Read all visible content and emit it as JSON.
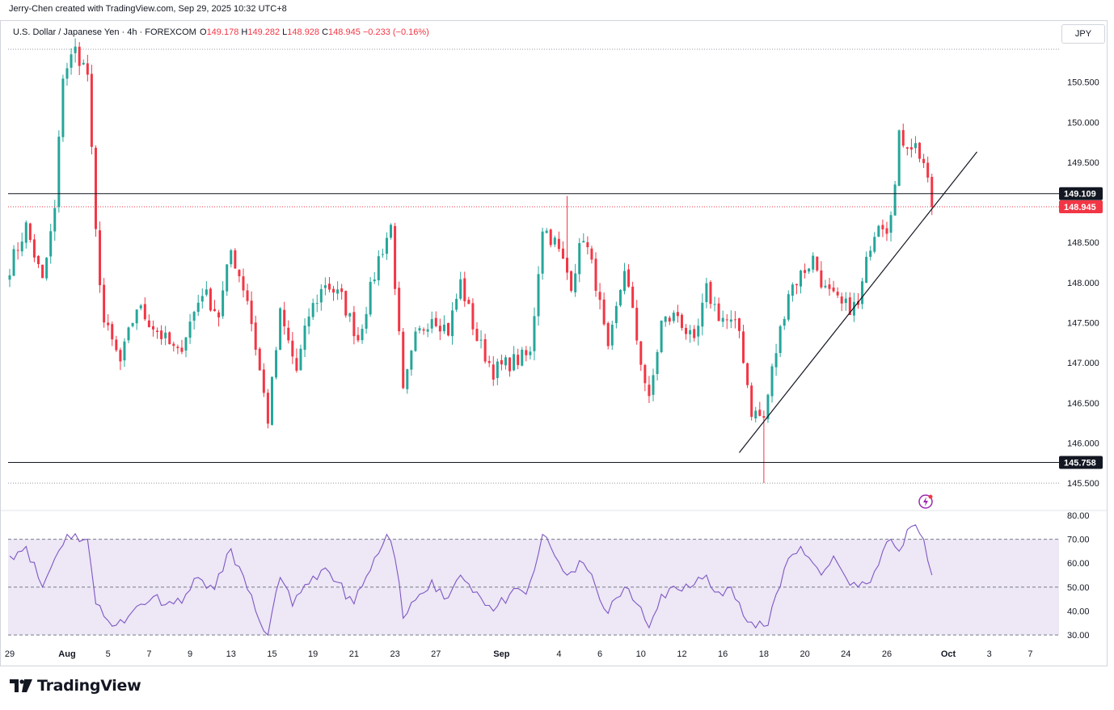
{
  "header": {
    "credit": "Jerry-Chen created with TradingView.com, Sep 29, 2025 10:32 UTC+8",
    "symbol": "U.S. Dollar / Japanese Yen · 4h · FOREXCOM",
    "ohlc": {
      "o_label": "O",
      "o": "149.178",
      "h_label": "H",
      "h": "149.282",
      "l_label": "L",
      "l": "148.928",
      "c_label": "C",
      "c": "148.945",
      "change": "−0.233 (−0.16%)"
    },
    "currency": "JPY"
  },
  "footer": {
    "brand": "TradingView"
  },
  "colors": {
    "up": "#26a69a",
    "down": "#f23645",
    "rsi": "#7e57c2",
    "rsi_band": "#ede7f6",
    "line": "#131722",
    "price_tag": "#f23645"
  },
  "chart_data": [
    {
      "type": "candlestick",
      "symbol": "USDJPY",
      "timeframe": "4h",
      "ylim": [
        145.4,
        151.0
      ],
      "y_ticks": [
        "150.500",
        "150.000",
        "149.500",
        "148.500",
        "148.000",
        "147.500",
        "147.000",
        "146.500",
        "146.000",
        "145.500"
      ],
      "x_ticks": [
        "29",
        "Aug",
        "5",
        "7",
        "9",
        "13",
        "15",
        "19",
        "21",
        "23",
        "27",
        "Sep",
        "4",
        "6",
        "10",
        "12",
        "16",
        "18",
        "20",
        "24",
        "26",
        "Oct",
        "3",
        "7"
      ],
      "x_tick_bars": [
        0,
        14,
        24,
        34,
        44,
        54,
        64,
        74,
        84,
        94,
        104,
        120,
        134,
        144,
        154,
        164,
        174,
        184,
        194,
        204,
        214,
        229,
        239,
        249
      ],
      "horizontal_levels": [
        {
          "label": "149.109",
          "value": 149.109,
          "color": "#131722",
          "style": "solid"
        },
        {
          "label": "145.758",
          "value": 145.758,
          "color": "#131722",
          "style": "solid"
        },
        {
          "label": "148.945",
          "value": 148.945,
          "color": "#f23645",
          "style": "dotted"
        }
      ],
      "trendline": {
        "from": {
          "bar": 178,
          "price": 145.88
        },
        "to": {
          "bar": 236,
          "price": 149.63
        }
      },
      "anchors": [
        {
          "bar": 0,
          "price": 148.2
        },
        {
          "bar": 4,
          "price": 148.7
        },
        {
          "bar": 8,
          "price": 148.0
        },
        {
          "bar": 11,
          "price": 148.9
        },
        {
          "bar": 13,
          "price": 150.6
        },
        {
          "bar": 16,
          "price": 150.9
        },
        {
          "bar": 19,
          "price": 150.6
        },
        {
          "bar": 21,
          "price": 148.6
        },
        {
          "bar": 23,
          "price": 147.5
        },
        {
          "bar": 27,
          "price": 147.0
        },
        {
          "bar": 31,
          "price": 147.7
        },
        {
          "bar": 36,
          "price": 147.4
        },
        {
          "bar": 41,
          "price": 147.1
        },
        {
          "bar": 47,
          "price": 147.9
        },
        {
          "bar": 51,
          "price": 147.6
        },
        {
          "bar": 54,
          "price": 148.4
        },
        {
          "bar": 58,
          "price": 147.8
        },
        {
          "bar": 63,
          "price": 146.3
        },
        {
          "bar": 66,
          "price": 147.6
        },
        {
          "bar": 70,
          "price": 146.9
        },
        {
          "bar": 73,
          "price": 147.6
        },
        {
          "bar": 77,
          "price": 148.0
        },
        {
          "bar": 81,
          "price": 147.8
        },
        {
          "bar": 85,
          "price": 147.3
        },
        {
          "bar": 90,
          "price": 148.3
        },
        {
          "bar": 93,
          "price": 148.7
        },
        {
          "bar": 96,
          "price": 146.6
        },
        {
          "bar": 99,
          "price": 147.3
        },
        {
          "bar": 103,
          "price": 147.6
        },
        {
          "bar": 107,
          "price": 147.4
        },
        {
          "bar": 110,
          "price": 148.0
        },
        {
          "bar": 114,
          "price": 147.3
        },
        {
          "bar": 118,
          "price": 146.9
        },
        {
          "bar": 122,
          "price": 147.0
        },
        {
          "bar": 127,
          "price": 147.1
        },
        {
          "bar": 130,
          "price": 148.7
        },
        {
          "bar": 133,
          "price": 148.5
        },
        {
          "bar": 137,
          "price": 148.0
        },
        {
          "bar": 140,
          "price": 148.6
        },
        {
          "bar": 143,
          "price": 148.0
        },
        {
          "bar": 146,
          "price": 147.1
        },
        {
          "bar": 150,
          "price": 148.2
        },
        {
          "bar": 153,
          "price": 147.3
        },
        {
          "bar": 156,
          "price": 146.5
        },
        {
          "bar": 159,
          "price": 147.5
        },
        {
          "bar": 163,
          "price": 147.6
        },
        {
          "bar": 167,
          "price": 147.2
        },
        {
          "bar": 170,
          "price": 147.9
        },
        {
          "bar": 173,
          "price": 147.6
        },
        {
          "bar": 178,
          "price": 147.4
        },
        {
          "bar": 181,
          "price": 146.4
        },
        {
          "bar": 184,
          "price": 146.3
        },
        {
          "bar": 186,
          "price": 146.9
        },
        {
          "bar": 190,
          "price": 147.9
        },
        {
          "bar": 193,
          "price": 148.1
        },
        {
          "bar": 196,
          "price": 148.3
        },
        {
          "bar": 199,
          "price": 147.9
        },
        {
          "bar": 203,
          "price": 147.7
        },
        {
          "bar": 207,
          "price": 147.7
        },
        {
          "bar": 210,
          "price": 148.5
        },
        {
          "bar": 212,
          "price": 148.8
        },
        {
          "bar": 214,
          "price": 148.7
        },
        {
          "bar": 216,
          "price": 149.2
        },
        {
          "bar": 217,
          "price": 149.8
        },
        {
          "bar": 219,
          "price": 149.75
        },
        {
          "bar": 221,
          "price": 149.7
        },
        {
          "bar": 223,
          "price": 149.5
        },
        {
          "bar": 224,
          "price": 149.2
        },
        {
          "bar": 225,
          "price": 148.945
        }
      ]
    },
    {
      "type": "line",
      "name": "RSI",
      "ylim": [
        27,
        82
      ],
      "y_ticks": [
        "80.00",
        "70.00",
        "60.00",
        "50.00",
        "40.00",
        "30.00"
      ],
      "band": [
        30,
        70
      ],
      "midline": 50,
      "anchors": [
        {
          "bar": 0,
          "value": 63
        },
        {
          "bar": 4,
          "value": 67
        },
        {
          "bar": 8,
          "value": 50
        },
        {
          "bar": 11,
          "value": 62
        },
        {
          "bar": 14,
          "value": 72
        },
        {
          "bar": 19,
          "value": 70
        },
        {
          "bar": 21,
          "value": 43
        },
        {
          "bar": 24,
          "value": 36
        },
        {
          "bar": 28,
          "value": 35
        },
        {
          "bar": 31,
          "value": 42
        },
        {
          "bar": 35,
          "value": 46
        },
        {
          "bar": 40,
          "value": 43
        },
        {
          "bar": 43,
          "value": 47
        },
        {
          "bar": 46,
          "value": 54
        },
        {
          "bar": 50,
          "value": 49
        },
        {
          "bar": 54,
          "value": 66
        },
        {
          "bar": 58,
          "value": 49
        },
        {
          "bar": 60,
          "value": 40
        },
        {
          "bar": 63,
          "value": 30
        },
        {
          "bar": 66,
          "value": 54
        },
        {
          "bar": 69,
          "value": 42
        },
        {
          "bar": 72,
          "value": 51
        },
        {
          "bar": 76,
          "value": 57
        },
        {
          "bar": 80,
          "value": 52
        },
        {
          "bar": 84,
          "value": 43
        },
        {
          "bar": 90,
          "value": 64
        },
        {
          "bar": 92,
          "value": 72
        },
        {
          "bar": 94,
          "value": 62
        },
        {
          "bar": 96,
          "value": 37
        },
        {
          "bar": 100,
          "value": 47
        },
        {
          "bar": 103,
          "value": 53
        },
        {
          "bar": 106,
          "value": 45
        },
        {
          "bar": 110,
          "value": 55
        },
        {
          "bar": 114,
          "value": 48
        },
        {
          "bar": 118,
          "value": 40
        },
        {
          "bar": 122,
          "value": 47
        },
        {
          "bar": 126,
          "value": 47
        },
        {
          "bar": 128,
          "value": 57
        },
        {
          "bar": 130,
          "value": 72
        },
        {
          "bar": 133,
          "value": 63
        },
        {
          "bar": 136,
          "value": 55
        },
        {
          "bar": 140,
          "value": 60
        },
        {
          "bar": 143,
          "value": 50
        },
        {
          "bar": 146,
          "value": 39
        },
        {
          "bar": 150,
          "value": 50
        },
        {
          "bar": 153,
          "value": 43
        },
        {
          "bar": 156,
          "value": 33
        },
        {
          "bar": 159,
          "value": 47
        },
        {
          "bar": 163,
          "value": 49
        },
        {
          "bar": 167,
          "value": 51
        },
        {
          "bar": 170,
          "value": 55
        },
        {
          "bar": 173,
          "value": 48
        },
        {
          "bar": 176,
          "value": 50
        },
        {
          "bar": 179,
          "value": 38
        },
        {
          "bar": 182,
          "value": 33
        },
        {
          "bar": 185,
          "value": 34
        },
        {
          "bar": 187,
          "value": 47
        },
        {
          "bar": 190,
          "value": 62
        },
        {
          "bar": 193,
          "value": 67
        },
        {
          "bar": 196,
          "value": 60
        },
        {
          "bar": 198,
          "value": 55
        },
        {
          "bar": 201,
          "value": 63
        },
        {
          "bar": 204,
          "value": 54
        },
        {
          "bar": 207,
          "value": 50
        },
        {
          "bar": 210,
          "value": 52
        },
        {
          "bar": 213,
          "value": 65
        },
        {
          "bar": 215,
          "value": 70
        },
        {
          "bar": 217,
          "value": 65
        },
        {
          "bar": 219,
          "value": 74
        },
        {
          "bar": 221,
          "value": 76
        },
        {
          "bar": 223,
          "value": 70
        },
        {
          "bar": 225,
          "value": 55
        }
      ]
    }
  ]
}
